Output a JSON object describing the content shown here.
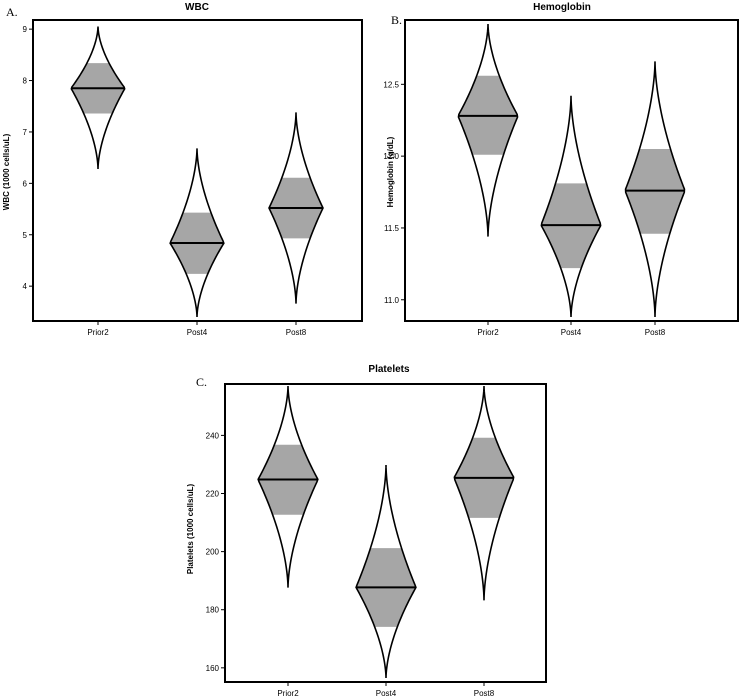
{
  "chart_data": [
    {
      "type": "violin",
      "panel_label": "A.",
      "title": "WBC",
      "ylabel": "WBC (1000 cells/uL)",
      "categories": [
        "Prior2",
        "Post4",
        "Post8"
      ],
      "ylim": [
        3.4,
        9.1
      ],
      "yticks": [
        4,
        5,
        6,
        7,
        8,
        9
      ],
      "ytick_labels": [
        "4",
        "5",
        "6",
        "7",
        "8",
        "9"
      ],
      "violins": [
        {
          "category": "Prior2",
          "median": 7.85,
          "q1": 7.36,
          "q3": 8.34,
          "min": 6.28,
          "max": 9.05
        },
        {
          "category": "Post4",
          "median": 4.84,
          "q1": 4.24,
          "q3": 5.43,
          "min": 3.4,
          "max": 6.68
        },
        {
          "category": "Post8",
          "median": 5.52,
          "q1": 4.93,
          "q3": 6.11,
          "min": 3.66,
          "max": 7.38
        }
      ]
    },
    {
      "type": "violin",
      "panel_label": "B.",
      "title": "Hemoglobin",
      "ylabel": "Hemoglobin (g/dL)",
      "categories": [
        "Prior2",
        "Post4",
        "Post8"
      ],
      "ylim": [
        10.88,
        12.92
      ],
      "yticks": [
        11.0,
        11.5,
        12.0,
        12.5
      ],
      "ytick_labels": [
        "11.0",
        "11.5",
        "12.0",
        "12.5"
      ],
      "violins": [
        {
          "category": "Prior2",
          "median": 12.28,
          "q1": 12.01,
          "q3": 12.56,
          "min": 11.44,
          "max": 12.92
        },
        {
          "category": "Post4",
          "median": 11.52,
          "q1": 11.22,
          "q3": 11.81,
          "min": 10.88,
          "max": 12.42
        },
        {
          "category": "Post8",
          "median": 11.76,
          "q1": 11.46,
          "q3": 12.05,
          "min": 10.88,
          "max": 12.66
        }
      ]
    },
    {
      "type": "violin",
      "panel_label": "C.",
      "title": "Platelets",
      "ylabel": "Platelets (1000 cells/uL)",
      "categories": [
        "Prior2",
        "Post4",
        "Post8"
      ],
      "ylim": [
        156.5,
        257
      ],
      "yticks": [
        160,
        180,
        200,
        220,
        240
      ],
      "ytick_labels": [
        "160",
        "180",
        "200",
        "220",
        "240"
      ],
      "violins": [
        {
          "category": "Prior2",
          "median": 224.8,
          "q1": 212.7,
          "q3": 236.8,
          "min": 187.6,
          "max": 257
        },
        {
          "category": "Post4",
          "median": 187.7,
          "q1": 174.1,
          "q3": 201.2,
          "min": 156.5,
          "max": 229.8
        },
        {
          "category": "Post8",
          "median": 225.4,
          "q1": 211.6,
          "q3": 239.2,
          "min": 183.2,
          "max": 257
        }
      ]
    }
  ]
}
